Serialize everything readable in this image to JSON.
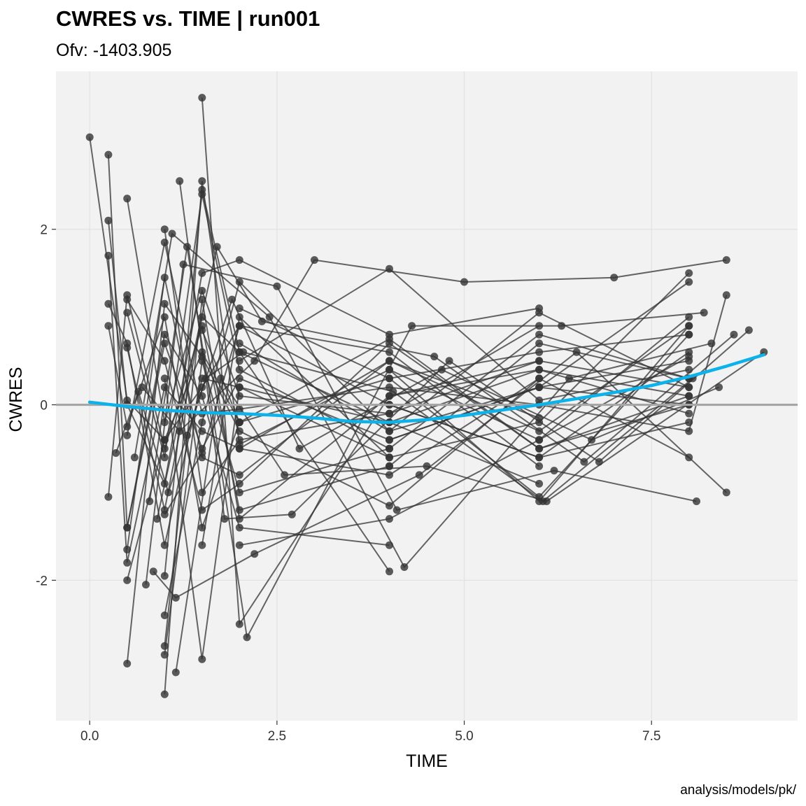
{
  "chart_data": {
    "type": "scatter",
    "title": "CWRES vs. TIME | run001",
    "subtitle": "Ofv: -1403.905",
    "caption": "analysis/models/pk/",
    "xlabel": "TIME",
    "ylabel": "CWRES",
    "xlim": [
      -0.45,
      9.45
    ],
    "ylim": [
      -3.6,
      3.8
    ],
    "x_ticks": [
      0,
      2.5,
      5,
      7.5
    ],
    "x_tick_labels": [
      "0.0",
      "2.5",
      "5.0",
      "7.5"
    ],
    "y_ticks": [
      -2,
      0,
      2
    ],
    "y_tick_labels": [
      "-2",
      "0",
      "2"
    ],
    "reference_line_y": 0,
    "grid": true,
    "colors": {
      "panel": "#f2f2f2",
      "grid": "#e2e2e2",
      "points_lines": "#333333",
      "smooth": "#0db2ea",
      "reference": "#a6a6a6"
    },
    "smooth": {
      "x": [
        0,
        0.5,
        1,
        1.5,
        2,
        2.5,
        3,
        3.5,
        4,
        4.5,
        5,
        5.5,
        6,
        6.5,
        7,
        7.5,
        8,
        8.5,
        9
      ],
      "y": [
        0.03,
        -0.02,
        -0.06,
        -0.09,
        -0.1,
        -0.12,
        -0.15,
        -0.19,
        -0.2,
        -0.17,
        -0.12,
        -0.06,
        0.0,
        0.07,
        0.14,
        0.22,
        0.32,
        0.44,
        0.57
      ]
    },
    "subjects": [
      {
        "x": [
          0,
          0.5,
          1,
          1.5,
          2
        ],
        "y": [
          3.05,
          0.05,
          -0.4,
          0.6,
          -0.2
        ]
      },
      {
        "x": [
          0.25,
          0.5,
          1,
          1.5,
          2,
          4,
          6,
          8
        ],
        "y": [
          2.85,
          -1.4,
          0.7,
          -0.5,
          0.3,
          -0.4,
          0.2,
          0.5
        ]
      },
      {
        "x": [
          0.25,
          0.5,
          1,
          1.5,
          2,
          4,
          6
        ],
        "y": [
          2.1,
          0.0,
          -0.9,
          1.5,
          1.65,
          0.8,
          1.1
        ]
      },
      {
        "x": [
          0.25,
          0.5,
          1,
          1.5,
          2,
          4,
          6,
          8
        ],
        "y": [
          1.7,
          -1.8,
          0.2,
          -0.3,
          -0.5,
          0.5,
          -0.3,
          0.9
        ]
      },
      {
        "x": [
          0.25,
          0.5,
          1,
          1.5,
          2,
          4
        ],
        "y": [
          1.15,
          0.7,
          -1.6,
          0.3,
          0.2,
          -0.6
        ]
      },
      {
        "x": [
          0.25,
          0.5,
          1,
          1.5,
          2,
          4,
          6,
          8
        ],
        "y": [
          0.9,
          -0.25,
          1.0,
          -1.4,
          -0.2,
          0.3,
          0.6,
          0.8
        ]
      },
      {
        "x": [
          0.25,
          0.5,
          1,
          1.5,
          2,
          4
        ],
        "y": [
          -1.05,
          1.25,
          -0.5,
          0.9,
          -1.2,
          -0.7
        ]
      },
      {
        "x": [
          0.5,
          1,
          1.5,
          2,
          4,
          6,
          8
        ],
        "y": [
          2.35,
          -0.2,
          1.3,
          0.1,
          -0.1,
          0.5,
          0.2
        ]
      },
      {
        "x": [
          0.5,
          1,
          1.5,
          2,
          4,
          6,
          8
        ],
        "y": [
          1.2,
          0.5,
          -1.2,
          -0.9,
          0.7,
          -0.5,
          0.1
        ]
      },
      {
        "x": [
          0.5,
          1,
          1.5,
          2,
          4,
          6
        ],
        "y": [
          -2.95,
          1.15,
          0.55,
          -0.3,
          -1.15,
          0.3
        ]
      },
      {
        "x": [
          0.5,
          1,
          1.5,
          2,
          4,
          6,
          8
        ],
        "y": [
          -2.0,
          -0.4,
          0.2,
          0.9,
          0.0,
          -0.6,
          -0.2
        ]
      },
      {
        "x": [
          0.5,
          1,
          1.5,
          2,
          4,
          6
        ],
        "y": [
          -1.65,
          1.45,
          -0.6,
          -0.8,
          0.5,
          -0.15
        ]
      },
      {
        "x": [
          0.5,
          1,
          1.5,
          2,
          4
        ],
        "y": [
          -1.4,
          0.8,
          0.1,
          -1.4,
          -1.6
        ]
      },
      {
        "x": [
          0.5,
          1,
          1.5,
          2,
          4,
          6
        ],
        "y": [
          0.65,
          -1.2,
          1.0,
          0.6,
          -0.2,
          -0.9
        ]
      },
      {
        "x": [
          0.5,
          1,
          1.5,
          2,
          4,
          6,
          8
        ],
        "y": [
          1.05,
          -0.6,
          2.4,
          0.4,
          -0.5,
          0.8,
          0.3
        ]
      },
      {
        "x": [
          0.5,
          1,
          1.5,
          2,
          4,
          6,
          8,
          8.5
        ],
        "y": [
          -0.35,
          1.85,
          -0.1,
          -0.05,
          0.2,
          0.0,
          -0.3,
          1.25
        ]
      },
      {
        "x": [
          1,
          1.5,
          2,
          4,
          6,
          8
        ],
        "y": [
          -3.3,
          2.55,
          -0.45,
          0.4,
          -0.4,
          0.55
        ]
      },
      {
        "x": [
          1,
          1.5,
          2,
          4
        ],
        "y": [
          -2.85,
          0.5,
          -1.0,
          -0.5
        ]
      },
      {
        "x": [
          1,
          1.5,
          2,
          4,
          6
        ],
        "y": [
          -2.75,
          1.2,
          -1.3,
          0.1,
          0.5
        ]
      },
      {
        "x": [
          1,
          1.5,
          2,
          4,
          6,
          8
        ],
        "y": [
          -2.4,
          -0.2,
          1.4,
          -0.3,
          0.2,
          1.4
        ]
      },
      {
        "x": [
          1,
          1.5,
          2,
          4
        ],
        "y": [
          -1.95,
          2.45,
          0.6,
          -1.9
        ]
      },
      {
        "x": [
          1,
          1.5,
          2,
          4,
          6
        ],
        "y": [
          -1.25,
          -0.55,
          0.9,
          0.6,
          -0.7
        ]
      },
      {
        "x": [
          1,
          1.5,
          2,
          4,
          6
        ],
        "y": [
          2.0,
          -1.0,
          -0.4,
          -0.1,
          0.9
        ]
      },
      {
        "x": [
          1,
          1.5,
          2,
          4,
          6,
          8
        ],
        "y": [
          0.3,
          -2.9,
          0.2,
          -0.2,
          0.4,
          -0.1
        ]
      },
      {
        "x": [
          1.5,
          2,
          4,
          6,
          8
        ],
        "y": [
          3.5,
          -2.5,
          0.1,
          0.4,
          0.1
        ]
      },
      {
        "x": [
          1.5,
          2,
          4,
          6,
          8
        ],
        "y": [
          -1.6,
          1.0,
          -0.6,
          -0.2,
          1.5
        ]
      },
      {
        "x": [
          1.5,
          2,
          4,
          6,
          8
        ],
        "y": [
          0.85,
          -0.2,
          0.75,
          -0.5,
          0.0
        ]
      },
      {
        "x": [
          2,
          4,
          6,
          8
        ],
        "y": [
          1.1,
          0.3,
          -1.05,
          0.8
        ]
      },
      {
        "x": [
          2,
          4,
          6,
          8
        ],
        "y": [
          -0.5,
          -0.8,
          0.3,
          -0.6
        ]
      },
      {
        "x": [
          2,
          4,
          6,
          8
        ],
        "y": [
          0.5,
          1.55,
          0.05,
          0.4
        ]
      },
      {
        "x": [
          2,
          4,
          6,
          8
        ],
        "y": [
          -1.6,
          -1.3,
          -0.4,
          1.0
        ]
      },
      {
        "x": [
          2,
          4,
          6,
          8
        ],
        "y": [
          0.7,
          -0.3,
          1.05,
          0.2
        ]
      },
      {
        "x": [
          4,
          6,
          8
        ],
        "y": [
          0.0,
          -0.6,
          0.6
        ]
      },
      {
        "x": [
          4,
          6,
          8
        ],
        "y": [
          -0.4,
          0.2,
          0.0
        ]
      },
      {
        "x": [
          4,
          6,
          8
        ],
        "y": [
          0.4,
          -1.1,
          0.9
        ]
      },
      {
        "x": [
          4,
          6,
          8
        ],
        "y": [
          -0.7,
          0.7,
          0.3
        ]
      },
      {
        "x": [
          0.7,
          1.2,
          2.2,
          3.0,
          5.0,
          7.0,
          8.5
        ],
        "y": [
          0.2,
          -0.3,
          0.5,
          1.65,
          1.4,
          1.45,
          1.65
        ]
      },
      {
        "x": [
          0.8,
          1.3,
          2.1,
          4.3,
          6.3,
          8.2
        ],
        "y": [
          -1.1,
          1.8,
          -2.65,
          0.9,
          0.9,
          1.05
        ]
      },
      {
        "x": [
          0.6,
          1.1,
          2.4,
          4.2,
          6.4,
          8.3
        ],
        "y": [
          -0.6,
          1.95,
          1.0,
          -1.85,
          0.3,
          0.7
        ]
      },
      {
        "x": [
          0.9,
          1.7,
          2.3,
          4.6,
          6.6,
          8.6
        ],
        "y": [
          -1.3,
          1.8,
          0.95,
          0.55,
          -0.65,
          0.8
        ]
      },
      {
        "x": [
          0.75,
          1.25,
          2.5,
          4.1,
          6.2,
          8.1
        ],
        "y": [
          -2.05,
          1.6,
          1.35,
          -1.2,
          -0.75,
          -1.1
        ]
      },
      {
        "x": [
          0.85,
          1.15,
          2.2,
          4.4,
          6.5,
          8.5
        ],
        "y": [
          -1.9,
          -2.2,
          -1.7,
          -0.8,
          0.6,
          -1.0
        ]
      },
      {
        "x": [
          1.2,
          1.8,
          2.7,
          4.8,
          6.8,
          8.8
        ],
        "y": [
          2.55,
          -1.3,
          -1.25,
          0.5,
          -0.65,
          0.85
        ]
      },
      {
        "x": [
          1.15,
          1.75,
          2.6,
          4.5,
          6.1,
          9.0
        ],
        "y": [
          -3.05,
          0.3,
          -0.8,
          -0.7,
          -1.1,
          0.6
        ]
      },
      {
        "x": [
          1.3,
          1.9,
          2.8,
          4.7,
          6.7,
          8.4
        ],
        "y": [
          -0.35,
          1.2,
          -0.5,
          0.4,
          -0.4,
          0.2
        ]
      },
      {
        "x": [
          0.35,
          0.65,
          1.05,
          1.55,
          2.05,
          4.05,
          6.05,
          8.05
        ],
        "y": [
          -0.55,
          0.15,
          -1.0,
          0.3,
          0.6,
          0.15,
          -1.1,
          0.3
        ]
      }
    ]
  }
}
